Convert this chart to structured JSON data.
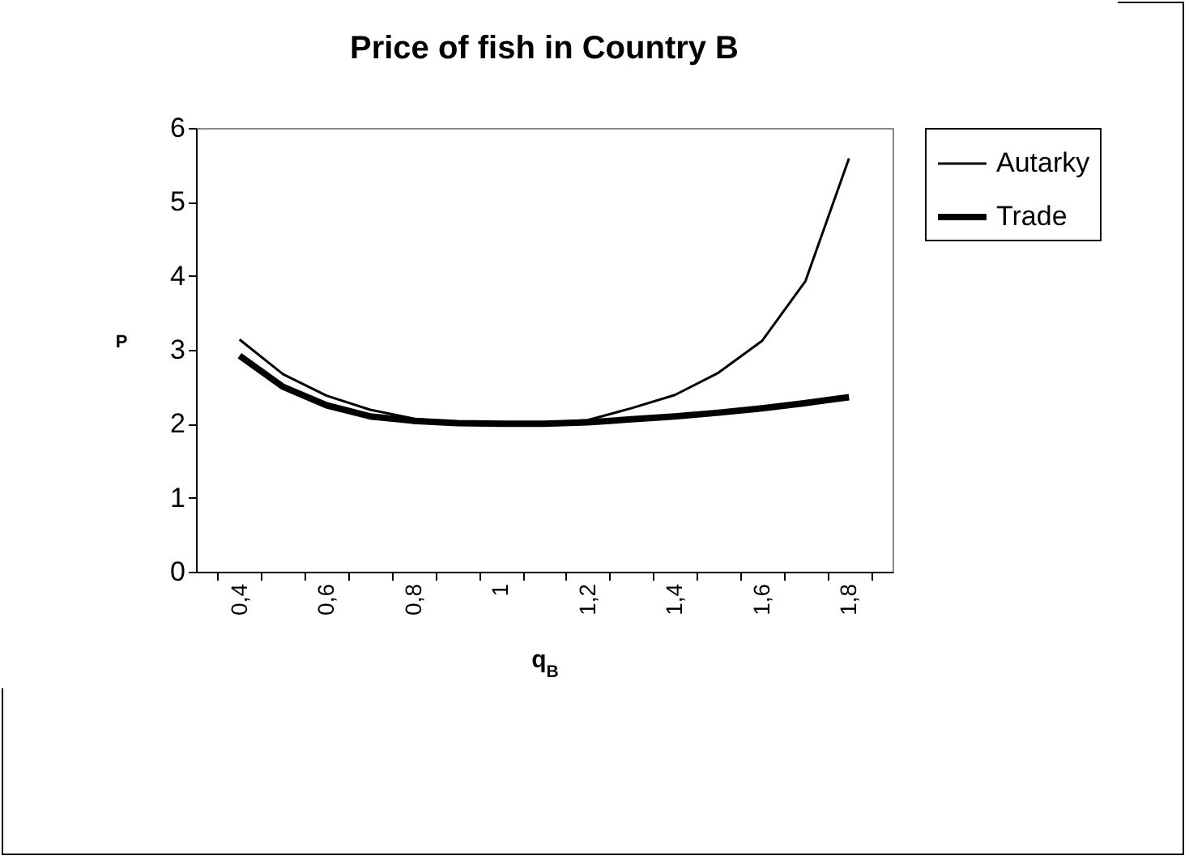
{
  "chart_data": {
    "type": "line",
    "title": "Price of fish in Country B",
    "xlabel": "q$_{B}$",
    "ylabel": "P",
    "categories": [
      "0,4",
      null,
      "0,6",
      null,
      "0,8",
      null,
      "1",
      null,
      "1,2",
      null,
      "1,4",
      null,
      "1,6",
      null,
      "1,8"
    ],
    "series": [
      {
        "name": "Autarky",
        "color": "#000000",
        "values": [
          3.14,
          2.67,
          2.38,
          2.19,
          2.07,
          2.01,
          1.99,
          2.01,
          2.05,
          2.21,
          2.39,
          2.69,
          3.12,
          3.93,
          5.59
        ]
      },
      {
        "name": "Trade",
        "color": "#000000",
        "values": [
          2.92,
          2.5,
          2.25,
          2.1,
          2.04,
          2.01,
          2.0,
          2.0,
          2.02,
          2.06,
          2.1,
          2.15,
          2.21,
          2.28,
          2.36
        ]
      }
    ],
    "ylim": [
      0,
      6
    ],
    "yticks": [
      0,
      1,
      2,
      3,
      4,
      5,
      6
    ],
    "grid": false,
    "legend": "right",
    "marker": "none",
    "line_style": "solid"
  }
}
